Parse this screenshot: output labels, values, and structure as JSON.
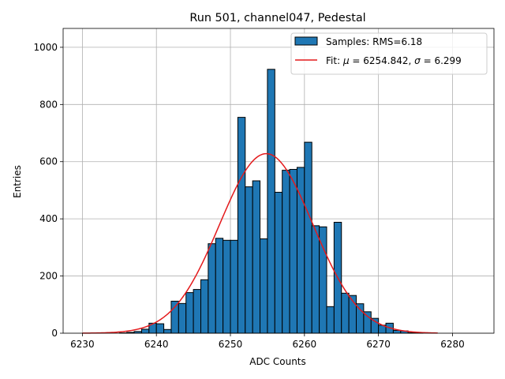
{
  "chart_data": {
    "type": "bar",
    "title": "Run 501, channel047, Pedestal",
    "xlabel": "ADC Counts",
    "ylabel": "Entries",
    "xlim": [
      6227.4,
      6285.6
    ],
    "ylim": [
      0,
      1066
    ],
    "xticks": [
      6230,
      6240,
      6250,
      6260,
      6270,
      6280
    ],
    "yticks": [
      0,
      200,
      400,
      600,
      800,
      1000
    ],
    "grid": true,
    "legend_position": "top-right",
    "colors": {
      "bar_fill": "#1f77b4",
      "bar_edge": "#000000",
      "fit_line": "#e41a1c",
      "grid": "#b0b0b0"
    },
    "histogram": {
      "name": "Samples: RMS=6.18",
      "bin_edges_start": 6235,
      "bin_width": 1,
      "values": [
        1,
        3,
        6,
        14,
        35,
        33,
        13,
        112,
        104,
        142,
        153,
        187,
        313,
        332,
        325,
        325,
        755,
        512,
        533,
        330,
        923,
        493,
        570,
        573,
        580,
        668,
        376,
        372,
        93,
        388,
        140,
        132,
        103,
        75,
        52,
        28,
        35,
        10,
        8,
        2,
        1
      ]
    },
    "fit": {
      "name": "Fit: μ = 6254.842, σ = 6.299",
      "legend_prefix": "Fit: ",
      "mu_label": "μ",
      "sigma_label": "σ",
      "mu_text": " = 6254.842, ",
      "sigma_text": " = 6.299",
      "mu": 6254.842,
      "sigma": 6.299,
      "amplitude": 628,
      "x_range": [
        6230,
        6278
      ]
    }
  }
}
